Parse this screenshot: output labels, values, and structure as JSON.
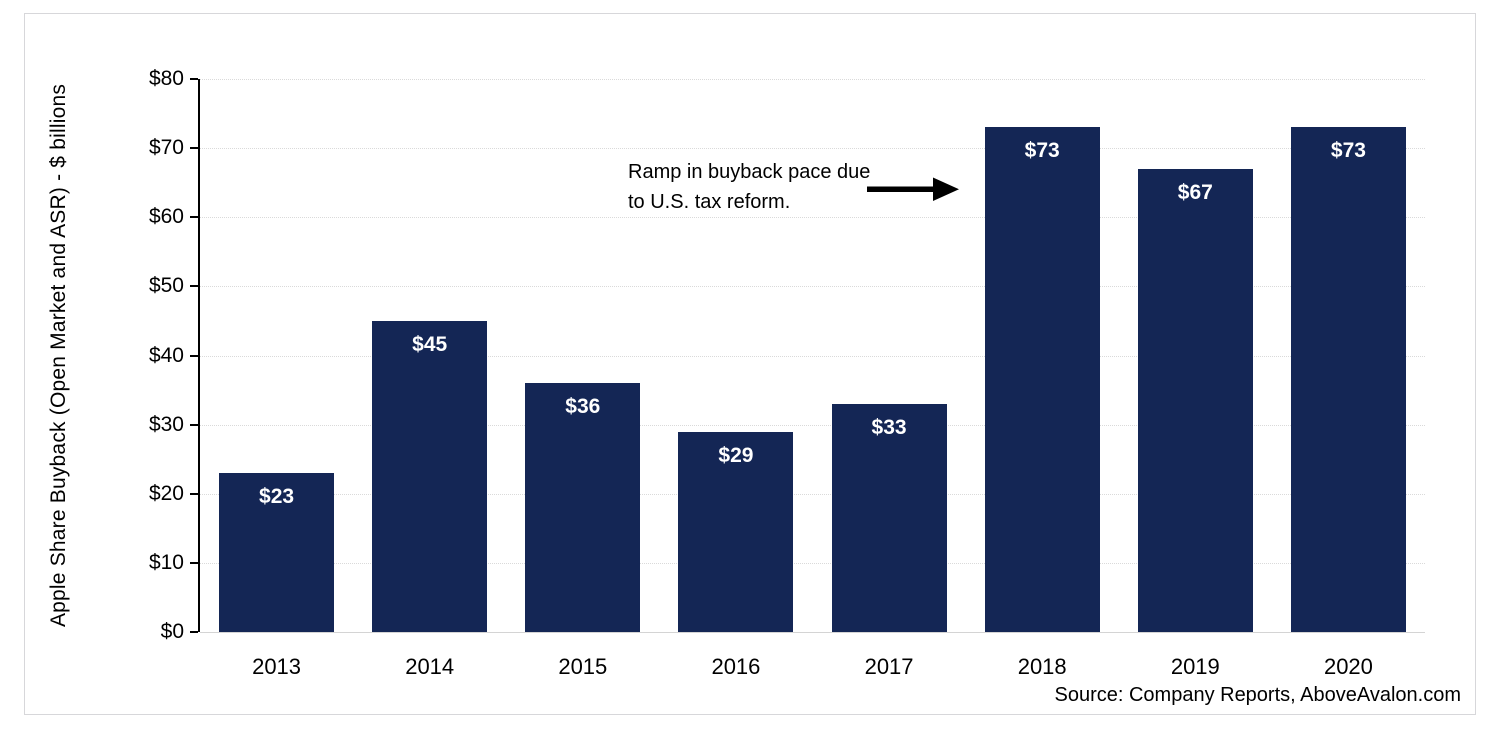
{
  "chart_data": {
    "type": "bar",
    "categories": [
      "2013",
      "2014",
      "2015",
      "2016",
      "2017",
      "2018",
      "2019",
      "2020"
    ],
    "values": [
      23,
      45,
      36,
      29,
      33,
      73,
      67,
      73
    ],
    "bar_labels": [
      "$23",
      "$45",
      "$36",
      "$29",
      "$33",
      "$73",
      "$67",
      "$73"
    ],
    "ylabel": "Apple Share Buyback (Open Market and ASR) - $ billions",
    "xlabel": "",
    "ylim": [
      0,
      80
    ],
    "ytick_step": 10,
    "ytick_labels": [
      "$0",
      "$10",
      "$20",
      "$30",
      "$40",
      "$50",
      "$60",
      "$70",
      "$80"
    ],
    "grid": "horizontal-dotted",
    "legend": "none",
    "bar_color": "#142655",
    "bar_label_color": "#ffffff",
    "gridline_color": "#dadada",
    "axis_color": "#000000",
    "annotation": {
      "line1": "Ramp in buyback pace due",
      "line2": "to U.S. tax reform.",
      "arrow_icon": "right-arrow",
      "arrow_color": "#000000",
      "target_category": "2018"
    },
    "source": "Source: Company Reports, AboveAvalon.com"
  }
}
